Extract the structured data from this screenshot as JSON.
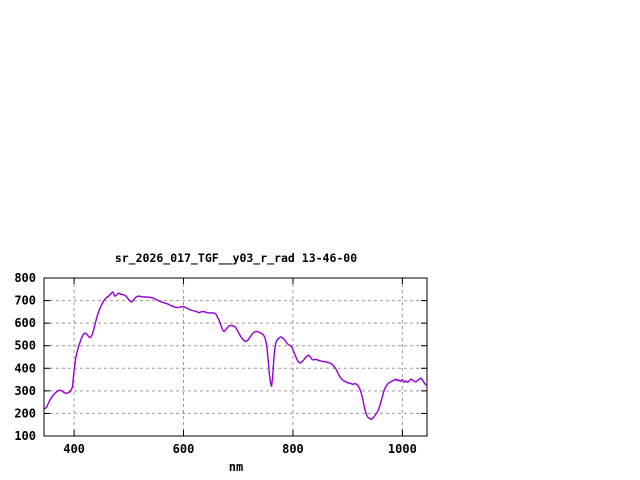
{
  "window": {
    "background_color": "#ffffff"
  },
  "chart_data": {
    "type": "line",
    "title": "sr_2026_017_TGF__y03_r_rad 13-46-00",
    "xlabel": "nm",
    "ylabel": "",
    "xlim": [
      345,
      1045
    ],
    "ylim": [
      100,
      800
    ],
    "x_ticks": [
      400,
      600,
      800,
      1000
    ],
    "y_ticks": [
      100,
      200,
      300,
      400,
      500,
      600,
      700,
      800
    ],
    "grid": "dashed",
    "legend_position": "none",
    "line_color": "#9400d3",
    "grid_color": "#9a9a9a",
    "axis_color": "#000000",
    "series": [
      {
        "name": "sr_2026_017_TGF__y03_r_rad",
        "points": [
          [
            347,
            222
          ],
          [
            350,
            228
          ],
          [
            354,
            250
          ],
          [
            358,
            268
          ],
          [
            362,
            281
          ],
          [
            366,
            292
          ],
          [
            370,
            300
          ],
          [
            374,
            303
          ],
          [
            378,
            299
          ],
          [
            382,
            292
          ],
          [
            386,
            289
          ],
          [
            390,
            292
          ],
          [
            394,
            300
          ],
          [
            397,
            318
          ],
          [
            400,
            390
          ],
          [
            403,
            445
          ],
          [
            406,
            478
          ],
          [
            409,
            502
          ],
          [
            412,
            525
          ],
          [
            415,
            543
          ],
          [
            418,
            553
          ],
          [
            421,
            556
          ],
          [
            424,
            549
          ],
          [
            427,
            539
          ],
          [
            430,
            536
          ],
          [
            433,
            548
          ],
          [
            436,
            572
          ],
          [
            439,
            602
          ],
          [
            442,
            630
          ],
          [
            445,
            652
          ],
          [
            448,
            670
          ],
          [
            451,
            685
          ],
          [
            454,
            698
          ],
          [
            457,
            708
          ],
          [
            460,
            715
          ],
          [
            463,
            720
          ],
          [
            466,
            727
          ],
          [
            469,
            735
          ],
          [
            471,
            738
          ],
          [
            473,
            728
          ],
          [
            475,
            719
          ],
          [
            478,
            726
          ],
          [
            481,
            733
          ],
          [
            484,
            730
          ],
          [
            487,
            727
          ],
          [
            490,
            726
          ],
          [
            493,
            723
          ],
          [
            496,
            718
          ],
          [
            499,
            706
          ],
          [
            502,
            698
          ],
          [
            505,
            694
          ],
          [
            508,
            700
          ],
          [
            511,
            710
          ],
          [
            514,
            717
          ],
          [
            517,
            720
          ],
          [
            520,
            719
          ],
          [
            524,
            717
          ],
          [
            528,
            716
          ],
          [
            532,
            716
          ],
          [
            536,
            715
          ],
          [
            540,
            714
          ],
          [
            544,
            712
          ],
          [
            548,
            707
          ],
          [
            552,
            702
          ],
          [
            556,
            697
          ],
          [
            560,
            694
          ],
          [
            564,
            690
          ],
          [
            568,
            688
          ],
          [
            572,
            684
          ],
          [
            576,
            679
          ],
          [
            580,
            675
          ],
          [
            584,
            671
          ],
          [
            588,
            669
          ],
          [
            592,
            670
          ],
          [
            596,
            672
          ],
          [
            600,
            673
          ],
          [
            604,
            669
          ],
          [
            608,
            664
          ],
          [
            612,
            659
          ],
          [
            616,
            656
          ],
          [
            620,
            654
          ],
          [
            624,
            651
          ],
          [
            628,
            646
          ],
          [
            632,
            650
          ],
          [
            636,
            652
          ],
          [
            640,
            649
          ],
          [
            644,
            646
          ],
          [
            648,
            645
          ],
          [
            652,
            646
          ],
          [
            656,
            645
          ],
          [
            660,
            638
          ],
          [
            664,
            618
          ],
          [
            668,
            594
          ],
          [
            671,
            572
          ],
          [
            674,
            563
          ],
          [
            677,
            570
          ],
          [
            680,
            580
          ],
          [
            683,
            587
          ],
          [
            686,
            590
          ],
          [
            689,
            589
          ],
          [
            692,
            586
          ],
          [
            695,
            583
          ],
          [
            698,
            570
          ],
          [
            701,
            556
          ],
          [
            704,
            543
          ],
          [
            707,
            532
          ],
          [
            710,
            524
          ],
          [
            713,
            519
          ],
          [
            716,
            521
          ],
          [
            719,
            528
          ],
          [
            722,
            540
          ],
          [
            725,
            551
          ],
          [
            728,
            558
          ],
          [
            731,
            562
          ],
          [
            734,
            563
          ],
          [
            737,
            561
          ],
          [
            740,
            558
          ],
          [
            743,
            554
          ],
          [
            746,
            548
          ],
          [
            749,
            535
          ],
          [
            751,
            515
          ],
          [
            753,
            480
          ],
          [
            755,
            430
          ],
          [
            757,
            375
          ],
          [
            759,
            335
          ],
          [
            761,
            320
          ],
          [
            763,
            365
          ],
          [
            765,
            440
          ],
          [
            767,
            490
          ],
          [
            769,
            515
          ],
          [
            772,
            528
          ],
          [
            775,
            536
          ],
          [
            778,
            539
          ],
          [
            781,
            535
          ],
          [
            784,
            528
          ],
          [
            787,
            519
          ],
          [
            790,
            508
          ],
          [
            793,
            503
          ],
          [
            796,
            499
          ],
          [
            799,
            490
          ],
          [
            802,
            470
          ],
          [
            805,
            452
          ],
          [
            808,
            436
          ],
          [
            811,
            425
          ],
          [
            814,
            424
          ],
          [
            817,
            430
          ],
          [
            820,
            438
          ],
          [
            823,
            447
          ],
          [
            826,
            455
          ],
          [
            829,
            458
          ],
          [
            832,
            449
          ],
          [
            835,
            439
          ],
          [
            838,
            437
          ],
          [
            841,
            440
          ],
          [
            844,
            438
          ],
          [
            847,
            435
          ],
          [
            850,
            433
          ],
          [
            853,
            431
          ],
          [
            856,
            430
          ],
          [
            859,
            429
          ],
          [
            862,
            427
          ],
          [
            865,
            425
          ],
          [
            868,
            423
          ],
          [
            871,
            418
          ],
          [
            874,
            412
          ],
          [
            877,
            402
          ],
          [
            880,
            390
          ],
          [
            883,
            375
          ],
          [
            886,
            362
          ],
          [
            889,
            352
          ],
          [
            892,
            346
          ],
          [
            895,
            342
          ],
          [
            898,
            339
          ],
          [
            901,
            335
          ],
          [
            904,
            334
          ],
          [
            907,
            331
          ],
          [
            910,
            329
          ],
          [
            913,
            332
          ],
          [
            916,
            330
          ],
          [
            919,
            322
          ],
          [
            922,
            310
          ],
          [
            925,
            290
          ],
          [
            928,
            258
          ],
          [
            931,
            222
          ],
          [
            934,
            196
          ],
          [
            937,
            183
          ],
          [
            940,
            177
          ],
          [
            943,
            174
          ],
          [
            946,
            179
          ],
          [
            949,
            188
          ],
          [
            952,
            198
          ],
          [
            955,
            210
          ],
          [
            958,
            228
          ],
          [
            961,
            252
          ],
          [
            964,
            280
          ],
          [
            967,
            305
          ],
          [
            970,
            320
          ],
          [
            973,
            330
          ],
          [
            976,
            336
          ],
          [
            979,
            341
          ],
          [
            982,
            344
          ],
          [
            985,
            347
          ],
          [
            988,
            352
          ],
          [
            990,
            345
          ],
          [
            992,
            350
          ],
          [
            994,
            347
          ],
          [
            996,
            342
          ],
          [
            998,
            346
          ],
          [
            1000,
            350
          ],
          [
            1002,
            343
          ],
          [
            1004,
            338
          ],
          [
            1006,
            344
          ],
          [
            1008,
            340
          ],
          [
            1010,
            338
          ],
          [
            1013,
            346
          ],
          [
            1016,
            352
          ],
          [
            1019,
            347
          ],
          [
            1022,
            342
          ],
          [
            1025,
            340
          ],
          [
            1028,
            347
          ],
          [
            1031,
            353
          ],
          [
            1034,
            356
          ],
          [
            1037,
            348
          ],
          [
            1040,
            335
          ],
          [
            1043,
            327
          ],
          [
            1044,
            325
          ]
        ]
      }
    ]
  }
}
